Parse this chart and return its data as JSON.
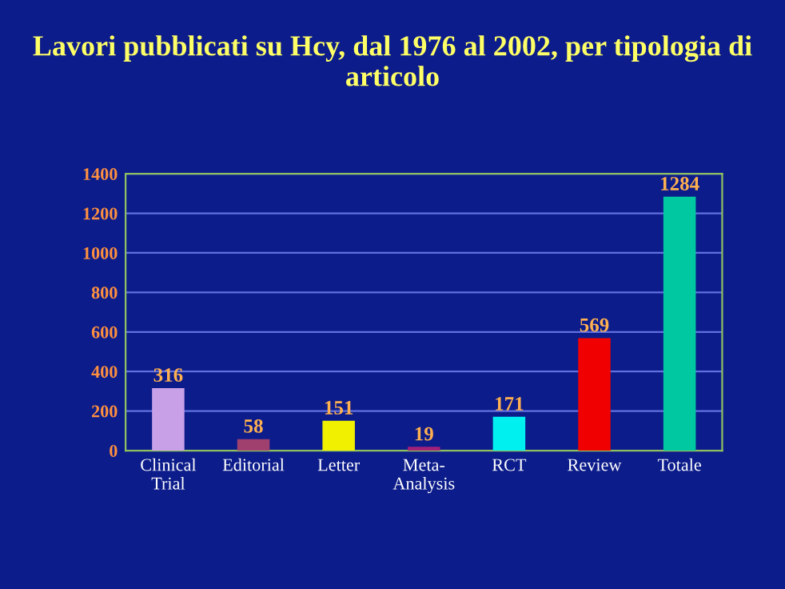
{
  "chart_data": {
    "type": "bar",
    "title": "Lavori pubblicati su Hcy, dal 1976 al 2002, per tipologia di articolo",
    "categories": [
      "Clinical\nTrial",
      "Editorial",
      "Letter",
      "Meta-\nAnalysis",
      "RCT",
      "Review",
      "Totale"
    ],
    "values": [
      316,
      58,
      151,
      19,
      171,
      569,
      1284
    ],
    "colors": [
      "#c8a0e8",
      "#a0406e",
      "#f0f000",
      "#a0207a",
      "#00f0f0",
      "#f00000",
      "#00c8a0"
    ],
    "ylim": [
      0,
      1400
    ],
    "yticks": [
      0,
      200,
      400,
      600,
      800,
      1000,
      1200,
      1400
    ],
    "grid": "y",
    "data_labels": true
  }
}
